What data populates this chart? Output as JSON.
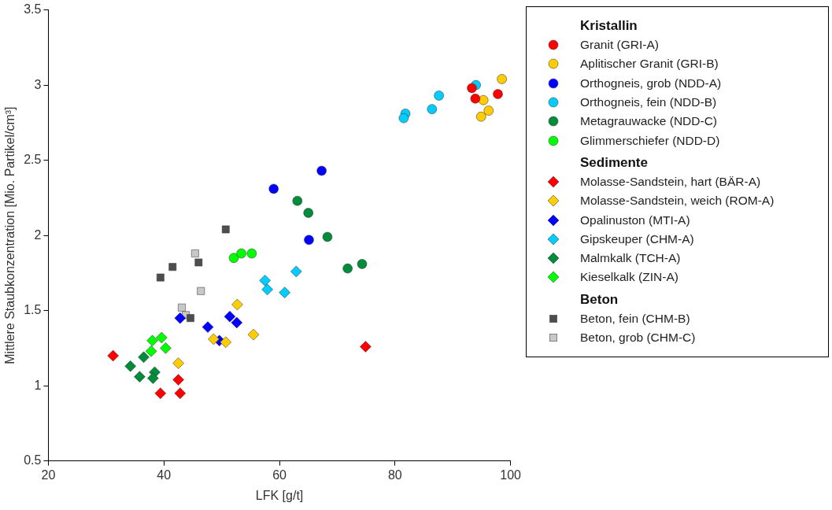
{
  "chart_data": {
    "type": "scatter",
    "xlabel": "LFK [g/t]",
    "ylabel": "Mittlere Staubkonzentration [Mio. Partikel/cm³]",
    "xlim": [
      20,
      100
    ],
    "xticks": [
      20,
      40,
      60,
      80,
      100
    ],
    "ylim": [
      0.5,
      3.5
    ],
    "yticks": [
      0.5,
      1,
      1.5,
      2,
      2.5,
      3,
      3.5
    ],
    "legend": "right",
    "grid": false,
    "annotations": [
      "Kristallin",
      "Sedimente",
      "Beton"
    ],
    "series": [
      {
        "name": "Granit (GRI-A)",
        "color": "#ff0000",
        "marker": "circle",
        "x": [
          93.3,
          93.9,
          97.8
        ],
        "values": [
          2.98,
          2.91,
          2.94
        ]
      },
      {
        "name": "Aplitischer Granit (GRI-B)",
        "color": "#ffcc00",
        "marker": "circle",
        "x": [
          98.5,
          95.3,
          96.2,
          94.9
        ],
        "values": [
          3.04,
          2.9,
          2.83,
          2.79
        ]
      },
      {
        "name": "Orthogneis, grob (NDD-A)",
        "color": "#0000ff",
        "marker": "circle",
        "x": [
          67.3,
          59.0,
          65.1
        ],
        "values": [
          2.43,
          2.31,
          1.97
        ]
      },
      {
        "name": "Orthogneis, fein (NDD-B)",
        "color": "#00ccff",
        "marker": "circle",
        "x": [
          94.0,
          87.6,
          86.4,
          81.8,
          81.5
        ],
        "values": [
          3.0,
          2.93,
          2.84,
          2.81,
          2.78
        ]
      },
      {
        "name": "Metagrauwacke (NDD-C)",
        "color": "#008c3a",
        "marker": "circle",
        "x": [
          63.1,
          65.0,
          68.3,
          71.8,
          74.3
        ],
        "values": [
          2.23,
          2.15,
          1.99,
          1.78,
          1.81
        ]
      },
      {
        "name": "Glimmerschiefer (NDD-D)",
        "color": "#00ff00",
        "marker": "circle",
        "x": [
          52.1,
          53.4,
          55.2
        ],
        "values": [
          1.85,
          1.88,
          1.88
        ]
      },
      {
        "name": "Molasse-Sandstein, hart (BÄR-A)",
        "color": "#ff0000",
        "marker": "diamond",
        "x": [
          31.2,
          42.5,
          39.4,
          42.8,
          74.9
        ],
        "values": [
          1.2,
          1.04,
          0.95,
          0.95,
          1.26
        ]
      },
      {
        "name": "Molasse-Sandstein, weich (ROM-A)",
        "color": "#ffcc00",
        "marker": "diamond",
        "x": [
          42.5,
          48.6,
          50.7,
          52.7,
          55.5
        ],
        "values": [
          1.15,
          1.31,
          1.29,
          1.54,
          1.34
        ]
      },
      {
        "name": "Opalinuston (MTI-A)",
        "color": "#0000ff",
        "marker": "diamond",
        "x": [
          42.8,
          47.6,
          49.6,
          51.4,
          52.6
        ],
        "values": [
          1.45,
          1.39,
          1.3,
          1.46,
          1.42
        ]
      },
      {
        "name": "Gipskeuper (CHM-A)",
        "color": "#00ccff",
        "marker": "diamond",
        "x": [
          57.5,
          57.9,
          60.9,
          62.9
        ],
        "values": [
          1.7,
          1.64,
          1.62,
          1.76
        ]
      },
      {
        "name": "Malmkalk (TCH-A)",
        "color": "#008c3a",
        "marker": "diamond",
        "x": [
          36.5,
          34.2,
          35.8,
          38.4,
          38.1
        ],
        "values": [
          1.19,
          1.13,
          1.06,
          1.09,
          1.05
        ]
      },
      {
        "name": "Kieselkalk (ZIN-A)",
        "color": "#00ff00",
        "marker": "diamond",
        "x": [
          38.0,
          39.6,
          40.3,
          37.8
        ],
        "values": [
          1.3,
          1.32,
          1.25,
          1.23
        ]
      },
      {
        "name": "Beton, fein (CHM-B)",
        "color": "#4d4d4d",
        "marker": "square",
        "x": [
          50.7,
          41.5,
          39.4,
          46.0,
          44.6
        ],
        "values": [
          2.04,
          1.79,
          1.72,
          1.82,
          1.45
        ]
      },
      {
        "name": "Beton, grob (CHM-C)",
        "color": "#c8c8c8",
        "marker": "square",
        "x": [
          45.4,
          46.4,
          43.1,
          43.8
        ],
        "values": [
          1.88,
          1.63,
          1.52,
          1.47
        ]
      }
    ]
  }
}
